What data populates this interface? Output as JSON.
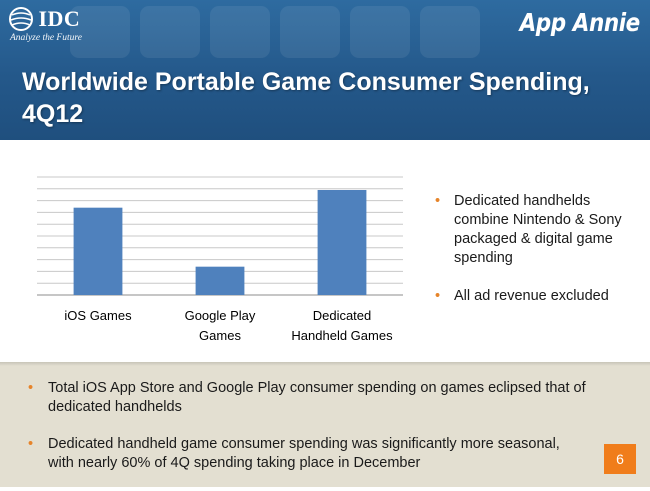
{
  "header": {
    "idc_logo": {
      "name": "IDC",
      "tagline": "Analyze the Future"
    },
    "app_annie_logo": "App Annie",
    "title": "Worldwide Portable Game Consumer Spending, 4Q12"
  },
  "chart_data": {
    "type": "bar",
    "title": "",
    "xlabel": "",
    "ylabel": "",
    "categories": [
      "iOS Games",
      "Google Play Games",
      "Dedicated Handheld Games"
    ],
    "category_lines": [
      [
        "iOS Games"
      ],
      [
        "Google Play",
        "Games"
      ],
      [
        "Dedicated",
        "Handheld Games"
      ]
    ],
    "values": [
      7.4,
      2.4,
      8.9
    ],
    "ylim": [
      0,
      10
    ],
    "ytick_count": 10,
    "grid": true,
    "bar_color": "#4f81bd",
    "show_y_tick_labels": false
  },
  "side_bullets": [
    "Dedicated handhelds combine Nintendo & Sony packaged & digital game spending",
    "All ad revenue excluded"
  ],
  "bottom_bullets": [
    "Total iOS App Store and Google Play consumer spending on games eclipsed that of dedicated handhelds",
    "Dedicated handheld game consumer spending was significantly more seasonal, with nearly 60% of 4Q spending taking place in December"
  ],
  "page_number": "6",
  "colors": {
    "header_blue": "#2a6296",
    "accent_orange": "#f07d1b",
    "bottom_bg": "#e3dfd1"
  }
}
